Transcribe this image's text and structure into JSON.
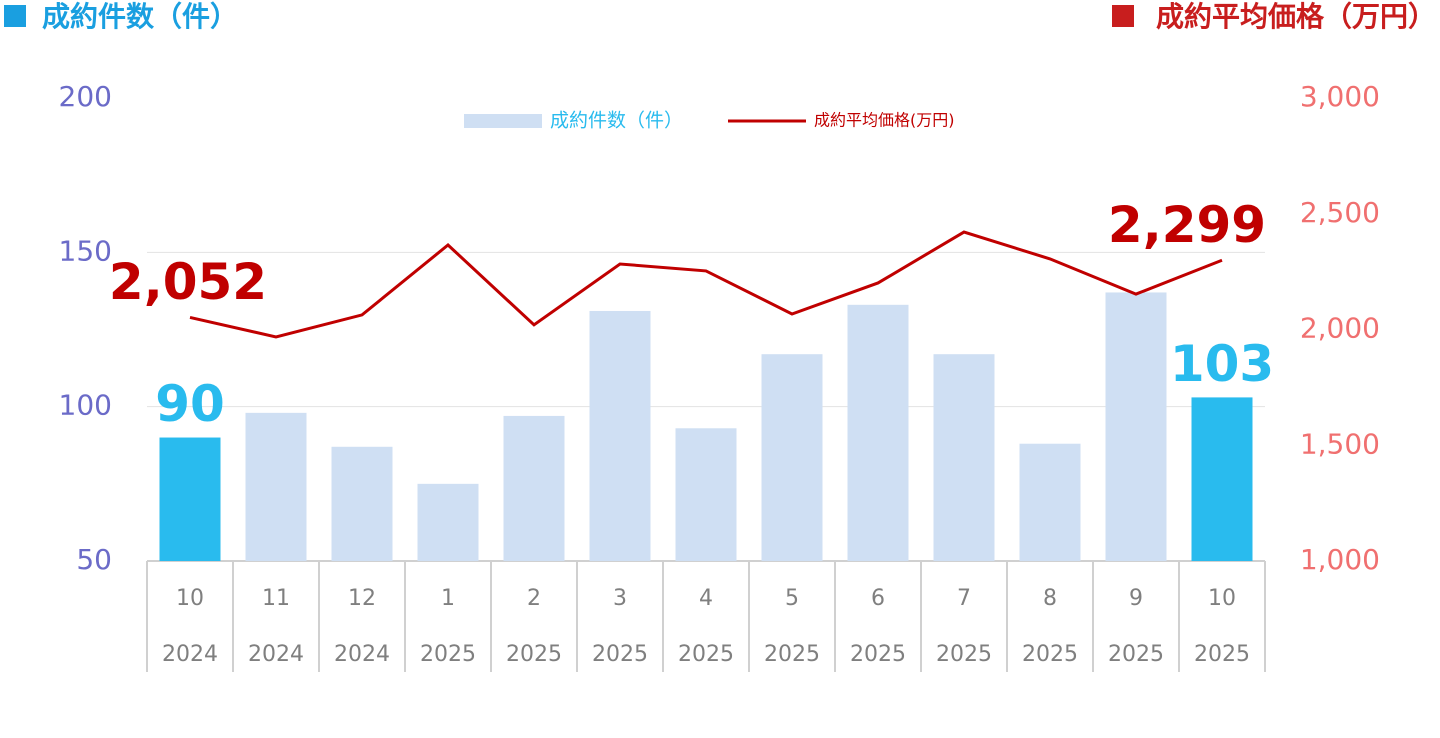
{
  "chart_data": {
    "type": "bar-line",
    "y_label": "成約件数（件）",
    "y_label_color": "#1a9fe0",
    "y2_label": "成約平均価格（万円）",
    "y2_label_color": "#c81e1e",
    "categories": [
      "10",
      "11",
      "12",
      "1",
      "2",
      "3",
      "4",
      "5",
      "6",
      "7",
      "8",
      "9",
      "10"
    ],
    "category_years": [
      "2024",
      "2024",
      "2024",
      "2025",
      "2025",
      "2025",
      "2025",
      "2025",
      "2025",
      "2025",
      "2025",
      "2025",
      "2025"
    ],
    "series": [
      {
        "name": "成約件数（件）",
        "kind": "bar",
        "color": "#cfdff3",
        "highlight_color": "#29bbee",
        "highlight": [
          0,
          12
        ],
        "values": [
          90,
          98,
          87,
          75,
          97,
          131,
          93,
          117,
          133,
          117,
          88,
          137,
          103
        ],
        "value_labels": [
          "90",
          null,
          null,
          null,
          null,
          null,
          null,
          null,
          null,
          null,
          null,
          null,
          "103"
        ]
      },
      {
        "name": "成約平均価格(万円)",
        "kind": "line",
        "axis": "y2",
        "color": "#c00000",
        "values": [
          2052,
          1968,
          2063,
          2365,
          2020,
          2283,
          2253,
          2067,
          2201,
          2421,
          2305,
          2153,
          2299
        ],
        "value_labels": [
          "2,052",
          null,
          null,
          null,
          null,
          null,
          null,
          null,
          null,
          null,
          null,
          null,
          "2,299"
        ]
      }
    ],
    "ylim": [
      50,
      200
    ],
    "yticks": [
      50,
      100,
      150,
      200
    ],
    "y2lim": [
      1000,
      3000
    ],
    "y2ticks": [
      {
        "value": 1000,
        "label": "1,000"
      },
      {
        "value": 1500,
        "label": "1,500"
      },
      {
        "value": 2000,
        "label": "2,000"
      },
      {
        "value": 2500,
        "label": "2,500"
      },
      {
        "value": 3000,
        "label": "3,000"
      }
    ],
    "grid": true,
    "legend": "top"
  }
}
